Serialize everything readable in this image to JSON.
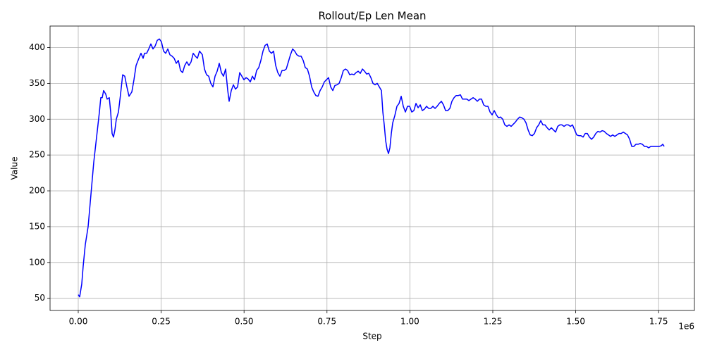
{
  "chart_data": {
    "type": "line",
    "title": "Rollout/Ep Len Mean",
    "x_label": "Step",
    "y_label": "Value",
    "x_offset_text": "1e6",
    "color": "blue",
    "grid": true,
    "xlim": [
      -85000,
      1858000
    ],
    "ylim": [
      33,
      430
    ],
    "xticks": [
      {
        "value": 0,
        "label": "0.00"
      },
      {
        "value": 250000,
        "label": "0.25"
      },
      {
        "value": 500000,
        "label": "0.50"
      },
      {
        "value": 750000,
        "label": "0.75"
      },
      {
        "value": 1000000,
        "label": "1.00"
      },
      {
        "value": 1250000,
        "label": "1.25"
      },
      {
        "value": 1500000,
        "label": "1.50"
      },
      {
        "value": 1750000,
        "label": "1.75"
      }
    ],
    "yticks": [
      50,
      100,
      150,
      200,
      250,
      300,
      350,
      400
    ],
    "x": [
      0,
      4300,
      10600,
      14900,
      21300,
      29800,
      38300,
      46800,
      55300,
      63800,
      68000,
      72300,
      76500,
      82900,
      87200,
      93600,
      97800,
      102100,
      106300,
      110600,
      114800,
      121200,
      127600,
      134000,
      140300,
      146700,
      153100,
      161600,
      168000,
      174400,
      182900,
      189200,
      195600,
      199900,
      206300,
      212600,
      219000,
      225400,
      231800,
      238200,
      244500,
      250900,
      257300,
      263700,
      270000,
      276400,
      282800,
      289200,
      295600,
      301900,
      308300,
      314700,
      321100,
      327400,
      333800,
      340200,
      346600,
      353000,
      359300,
      365700,
      374200,
      380600,
      387000,
      393300,
      399700,
      406100,
      412500,
      418900,
      425200,
      431600,
      438000,
      444400,
      450800,
      455000,
      461400,
      467800,
      474100,
      480500,
      486900,
      493300,
      499700,
      506000,
      512400,
      518800,
      525200,
      531500,
      537900,
      544300,
      550700,
      557100,
      563400,
      569800,
      576200,
      582600,
      589000,
      595300,
      601700,
      608100,
      614500,
      620800,
      627200,
      633600,
      640000,
      646400,
      652700,
      659100,
      665500,
      671900,
      678300,
      684600,
      691000,
      697400,
      703800,
      710100,
      716500,
      722900,
      729300,
      735700,
      742000,
      748400,
      754800,
      761200,
      767600,
      773900,
      780300,
      786700,
      793100,
      799400,
      805800,
      812200,
      818600,
      825000,
      831300,
      837700,
      844100,
      850500,
      856900,
      863200,
      869600,
      876000,
      882400,
      888700,
      895100,
      901500,
      907900,
      914200,
      918500,
      922700,
      927000,
      931200,
      935500,
      939700,
      944000,
      948300,
      954600,
      961000,
      967400,
      973800,
      980100,
      986500,
      992900,
      999300,
      1005700,
      1012000,
      1018400,
      1024800,
      1031200,
      1037500,
      1043900,
      1050300,
      1056700,
      1063100,
      1069400,
      1075800,
      1082200,
      1088600,
      1095000,
      1101300,
      1107700,
      1114100,
      1120500,
      1126800,
      1133200,
      1139600,
      1146000,
      1152400,
      1158700,
      1165100,
      1171500,
      1177900,
      1184300,
      1190600,
      1197000,
      1203400,
      1209800,
      1216100,
      1222500,
      1228900,
      1235300,
      1241700,
      1248000,
      1254400,
      1260800,
      1267200,
      1273600,
      1279900,
      1286300,
      1292700,
      1299100,
      1305400,
      1311800,
      1318200,
      1324600,
      1331000,
      1337300,
      1343700,
      1350100,
      1356500,
      1362800,
      1369200,
      1375600,
      1382000,
      1388400,
      1394700,
      1401100,
      1407500,
      1413900,
      1420300,
      1426600,
      1433000,
      1439400,
      1445800,
      1452100,
      1458500,
      1464900,
      1471300,
      1477700,
      1484000,
      1490400,
      1496800,
      1503200,
      1509500,
      1515900,
      1522300,
      1528700,
      1535100,
      1541400,
      1547800,
      1554200,
      1560600,
      1567000,
      1573300,
      1579700,
      1586100,
      1592500,
      1598800,
      1605200,
      1611600,
      1618000,
      1624400,
      1630700,
      1637100,
      1643500,
      1649900,
      1656200,
      1662600,
      1669000,
      1675400,
      1681800,
      1688100,
      1694500,
      1700900,
      1707300,
      1713700,
      1720000,
      1726400,
      1732800,
      1739200,
      1745500,
      1751900,
      1758300,
      1762500,
      1766800
    ],
    "values": [
      55,
      52,
      70,
      95,
      125,
      150,
      195,
      240,
      275,
      310,
      330,
      330,
      340,
      335,
      328,
      330,
      310,
      280,
      275,
      285,
      300,
      310,
      335,
      362,
      360,
      345,
      332,
      338,
      355,
      375,
      385,
      392,
      385,
      392,
      392,
      398,
      405,
      398,
      402,
      410,
      412,
      408,
      395,
      392,
      398,
      390,
      388,
      385,
      378,
      382,
      368,
      365,
      375,
      380,
      375,
      380,
      392,
      388,
      385,
      395,
      390,
      370,
      362,
      360,
      350,
      345,
      360,
      367,
      378,
      365,
      360,
      370,
      340,
      325,
      340,
      348,
      342,
      345,
      365,
      360,
      355,
      358,
      356,
      352,
      360,
      355,
      368,
      372,
      382,
      395,
      403,
      405,
      395,
      392,
      395,
      375,
      365,
      360,
      368,
      368,
      370,
      380,
      390,
      398,
      395,
      390,
      388,
      388,
      382,
      372,
      370,
      360,
      345,
      338,
      333,
      332,
      340,
      345,
      352,
      355,
      358,
      345,
      340,
      347,
      348,
      350,
      358,
      368,
      370,
      368,
      362,
      363,
      362,
      365,
      367,
      364,
      370,
      367,
      363,
      364,
      358,
      350,
      348,
      350,
      345,
      340,
      310,
      292,
      270,
      258,
      252,
      260,
      280,
      295,
      305,
      318,
      322,
      332,
      318,
      310,
      318,
      318,
      310,
      312,
      322,
      316,
      320,
      312,
      314,
      318,
      315,
      315,
      318,
      315,
      318,
      322,
      325,
      320,
      312,
      312,
      315,
      325,
      330,
      333,
      333,
      334,
      328,
      328,
      328,
      326,
      328,
      330,
      328,
      325,
      328,
      328,
      320,
      318,
      318,
      310,
      306,
      312,
      306,
      302,
      303,
      300,
      292,
      290,
      292,
      290,
      293,
      296,
      300,
      303,
      302,
      300,
      295,
      285,
      278,
      277,
      280,
      288,
      292,
      298,
      292,
      292,
      288,
      285,
      288,
      285,
      282,
      290,
      292,
      292,
      290,
      292,
      292,
      290,
      292,
      285,
      278,
      277,
      277,
      275,
      280,
      280,
      275,
      272,
      275,
      280,
      283,
      282,
      284,
      283,
      280,
      278,
      276,
      278,
      276,
      278,
      280,
      280,
      282,
      280,
      278,
      272,
      262,
      262,
      265,
      265,
      266,
      265,
      262,
      262,
      260,
      262,
      262,
      262,
      262,
      262,
      263,
      265,
      262
    ]
  }
}
